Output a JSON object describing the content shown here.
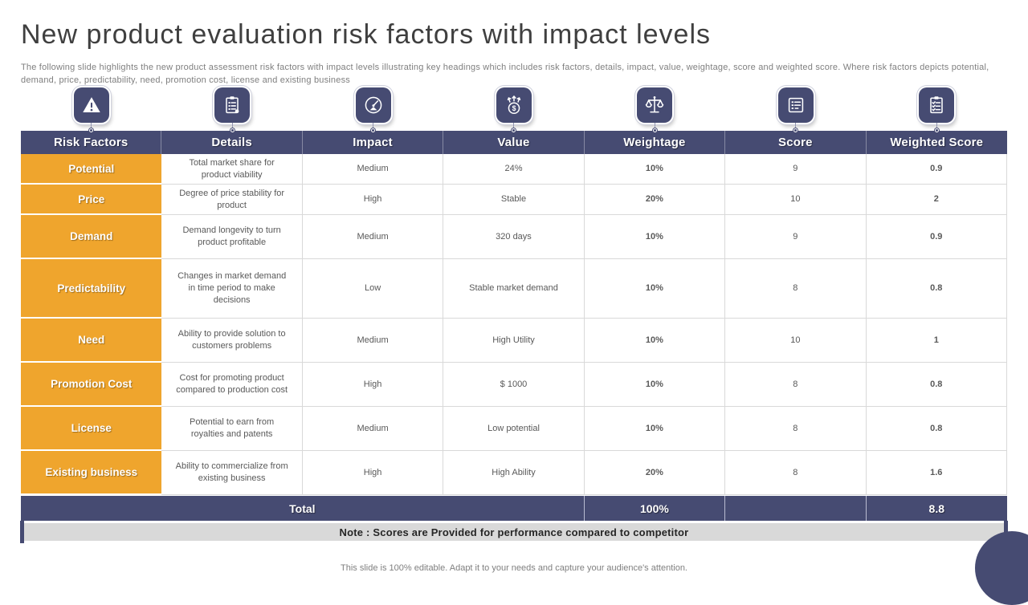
{
  "slide": {
    "title": "New product evaluation risk factors with impact levels",
    "subtitle": "The following slide highlights the new product assessment risk factors with impact levels illustrating key headings which includes risk factors, details, impact, value, weightage, score and weighted score. Where risk factors depicts potential, demand, price, predictability, need, promotion cost, license and existing business",
    "note": "Note : Scores are Provided for performance compared to competitor",
    "footer": "This slide is 100% editable. Adapt it to your needs and capture your audience's attention."
  },
  "colors": {
    "navy": "#464b72",
    "orange": "#efa52d",
    "note_background": "#d9d9d9",
    "border": "#d9d9d9"
  },
  "icons": [
    {
      "name": "warning-icon",
      "column": "Risk Factors"
    },
    {
      "name": "details-clipboard-icon",
      "column": "Details"
    },
    {
      "name": "impact-gauge-icon",
      "column": "Impact"
    },
    {
      "name": "value-money-icon",
      "column": "Value"
    },
    {
      "name": "weightage-scale-icon",
      "column": "Weightage"
    },
    {
      "name": "score-list-icon",
      "column": "Score"
    },
    {
      "name": "weighted-score-checklist-icon",
      "column": "Weighted Score"
    }
  ],
  "table": {
    "headers": [
      "Risk Factors",
      "Details",
      "Impact",
      "Value",
      "Weightage",
      "Score",
      "Weighted Score"
    ],
    "rows": [
      {
        "factor": "Potential",
        "details": "Total market share for product viability",
        "impact": "Medium",
        "value": "24%",
        "weightage": "10%",
        "score": "9",
        "weighted_score": "0.9"
      },
      {
        "factor": "Price",
        "details": "Degree of price stability for product",
        "impact": "High",
        "value": "Stable",
        "weightage": "20%",
        "score": "10",
        "weighted_score": "2"
      },
      {
        "factor": "Demand",
        "details": "Demand longevity to turn product profitable",
        "impact": "Medium",
        "value": "320 days",
        "weightage": "10%",
        "score": "9",
        "weighted_score": "0.9"
      },
      {
        "factor": "Predictability",
        "details": "Changes in market demand in time period to make decisions",
        "impact": "Low",
        "value": "Stable market demand",
        "weightage": "10%",
        "score": "8",
        "weighted_score": "0.8"
      },
      {
        "factor": "Need",
        "details": "Ability to provide solution to customers problems",
        "impact": "Medium",
        "value": "High Utility",
        "weightage": "10%",
        "score": "10",
        "weighted_score": "1"
      },
      {
        "factor": "Promotion Cost",
        "details": "Cost for promoting product compared to production cost",
        "impact": "High",
        "value": "$ 1000",
        "weightage": "10%",
        "score": "8",
        "weighted_score": "0.8"
      },
      {
        "factor": "License",
        "details": "Potential to earn from royalties and patents",
        "impact": "Medium",
        "value": "Low potential",
        "weightage": "10%",
        "score": "8",
        "weighted_score": "0.8"
      },
      {
        "factor": "Existing business",
        "details": "Ability to commercialize from existing business",
        "impact": "High",
        "value": "High Ability",
        "weightage": "20%",
        "score": "8",
        "weighted_score": "1.6"
      }
    ],
    "total": {
      "label": "Total",
      "weightage": "100%",
      "score": "",
      "weighted_score": "8.8"
    }
  }
}
